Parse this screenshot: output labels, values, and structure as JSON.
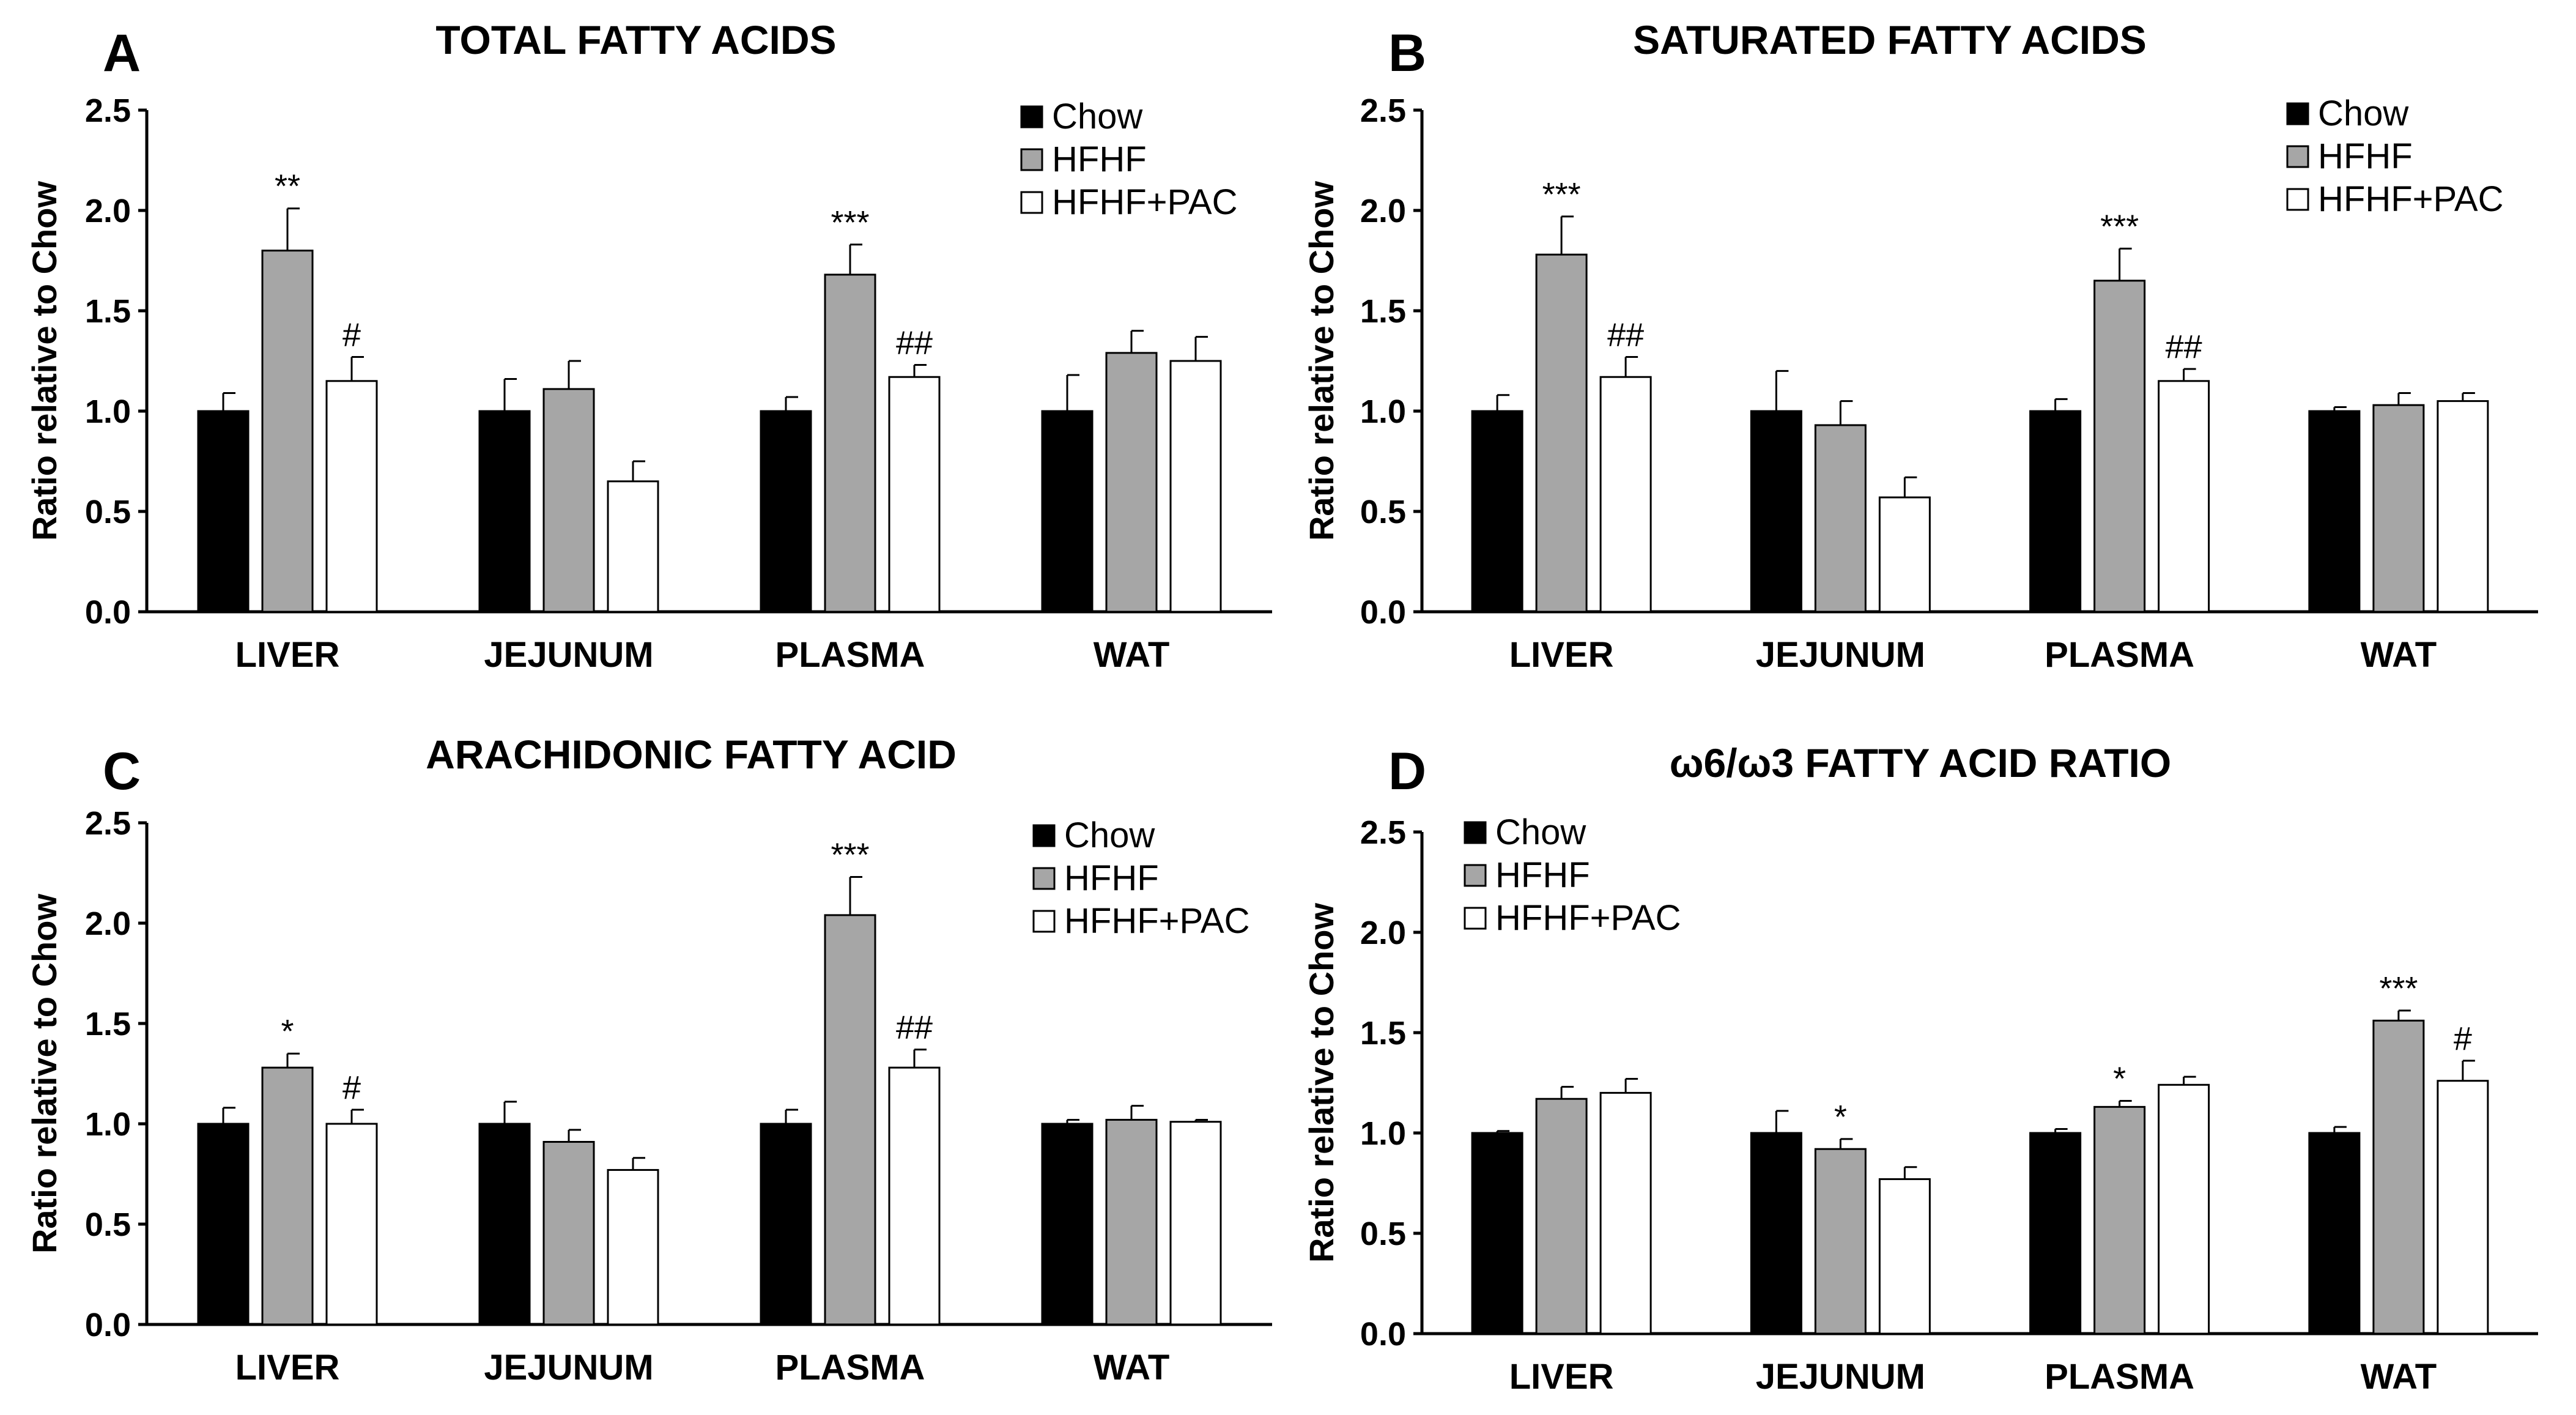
{
  "chart_data": [
    {
      "panel": "A",
      "type": "bar",
      "title": "TOTAL FATTY ACIDS",
      "xlabel": "",
      "ylabel": "Ratio relative to Chow",
      "ylim": [
        0,
        2.5
      ],
      "yticks": [
        "0.0",
        "0.5",
        "1.0",
        "1.5",
        "2.0",
        "2.5"
      ],
      "categories": [
        "LIVER",
        "JEJUNUM",
        "PLASMA",
        "WAT"
      ],
      "legend_position": "top-right",
      "series": [
        {
          "name": "Chow",
          "color": "#000000",
          "values": [
            1.0,
            1.0,
            1.0,
            1.0
          ],
          "errors": [
            0.09,
            0.16,
            0.07,
            0.18
          ]
        },
        {
          "name": "HFHF",
          "color": "#a6a6a6",
          "values": [
            1.8,
            1.11,
            1.68,
            1.29
          ],
          "errors": [
            0.21,
            0.14,
            0.15,
            0.11
          ]
        },
        {
          "name": "HFHF+PAC",
          "color": "#ffffff",
          "values": [
            1.15,
            0.65,
            1.17,
            1.25
          ],
          "errors": [
            0.12,
            0.1,
            0.06,
            0.12
          ]
        }
      ],
      "annotations": [
        {
          "category": 0,
          "series": 1,
          "text": "**"
        },
        {
          "category": 0,
          "series": 2,
          "text": "#"
        },
        {
          "category": 2,
          "series": 1,
          "text": "***"
        },
        {
          "category": 2,
          "series": 2,
          "text": "##"
        }
      ]
    },
    {
      "panel": "B",
      "type": "bar",
      "title": "SATURATED FATTY ACIDS",
      "xlabel": "",
      "ylabel": "Ratio relative to Chow",
      "ylim": [
        0,
        2.5
      ],
      "yticks": [
        "0.0",
        "0.5",
        "1.0",
        "1.5",
        "2.0",
        "2.5"
      ],
      "categories": [
        "LIVER",
        "JEJUNUM",
        "PLASMA",
        "WAT"
      ],
      "legend_position": "top-right",
      "series": [
        {
          "name": "Chow",
          "color": "#000000",
          "values": [
            1.0,
            1.0,
            1.0,
            1.0
          ],
          "errors": [
            0.08,
            0.2,
            0.06,
            0.02
          ]
        },
        {
          "name": "HFHF",
          "color": "#a6a6a6",
          "values": [
            1.78,
            0.93,
            1.65,
            1.03
          ],
          "errors": [
            0.19,
            0.12,
            0.16,
            0.06
          ]
        },
        {
          "name": "HFHF+PAC",
          "color": "#ffffff",
          "values": [
            1.17,
            0.57,
            1.15,
            1.05
          ],
          "errors": [
            0.1,
            0.1,
            0.06,
            0.04
          ]
        }
      ],
      "annotations": [
        {
          "category": 0,
          "series": 1,
          "text": "***"
        },
        {
          "category": 0,
          "series": 2,
          "text": "##"
        },
        {
          "category": 2,
          "series": 1,
          "text": "***"
        },
        {
          "category": 2,
          "series": 2,
          "text": "##"
        }
      ]
    },
    {
      "panel": "C",
      "type": "bar",
      "title": "ARACHIDONIC FATTY ACID",
      "xlabel": "",
      "ylabel": "Ratio relative to Chow",
      "ylim": [
        0,
        2.5
      ],
      "yticks": [
        "0.0",
        "0.5",
        "1.0",
        "1.5",
        "2.0",
        "2.5"
      ],
      "categories": [
        "LIVER",
        "JEJUNUM",
        "PLASMA",
        "WAT"
      ],
      "legend_position": "top-right",
      "series": [
        {
          "name": "Chow",
          "color": "#000000",
          "values": [
            1.0,
            1.0,
            1.0,
            1.0
          ],
          "errors": [
            0.08,
            0.11,
            0.07,
            0.02
          ]
        },
        {
          "name": "HFHF",
          "color": "#a6a6a6",
          "values": [
            1.28,
            0.91,
            2.04,
            1.02
          ],
          "errors": [
            0.07,
            0.06,
            0.19,
            0.07
          ]
        },
        {
          "name": "HFHF+PAC",
          "color": "#ffffff",
          "values": [
            1.0,
            0.77,
            1.28,
            1.01
          ],
          "errors": [
            0.07,
            0.06,
            0.09,
            0.01
          ]
        }
      ],
      "annotations": [
        {
          "category": 0,
          "series": 1,
          "text": "*"
        },
        {
          "category": 0,
          "series": 2,
          "text": "#"
        },
        {
          "category": 2,
          "series": 1,
          "text": "***"
        },
        {
          "category": 2,
          "series": 2,
          "text": "##"
        }
      ]
    },
    {
      "panel": "D",
      "type": "bar",
      "title": "ω6/ω3 FATTY ACID RATIO",
      "xlabel": "",
      "ylabel": "Ratio relative to Chow",
      "ylim": [
        0,
        2.5
      ],
      "yticks": [
        "0.0",
        "0.5",
        "1.0",
        "1.5",
        "2.0",
        "2.5"
      ],
      "categories": [
        "LIVER",
        "JEJUNUM",
        "PLASMA",
        "WAT"
      ],
      "legend_position": "top-left",
      "series": [
        {
          "name": "Chow",
          "color": "#000000",
          "values": [
            1.0,
            1.0,
            1.0,
            1.0
          ],
          "errors": [
            0.01,
            0.11,
            0.02,
            0.03
          ]
        },
        {
          "name": "HFHF",
          "color": "#a6a6a6",
          "values": [
            1.17,
            0.92,
            1.13,
            1.56
          ],
          "errors": [
            0.06,
            0.05,
            0.03,
            0.05
          ]
        },
        {
          "name": "HFHF+PAC",
          "color": "#ffffff",
          "values": [
            1.2,
            0.77,
            1.24,
            1.26
          ],
          "errors": [
            0.07,
            0.06,
            0.04,
            0.1
          ]
        }
      ],
      "annotations": [
        {
          "category": 1,
          "series": 1,
          "text": "*"
        },
        {
          "category": 2,
          "series": 1,
          "text": "*"
        },
        {
          "category": 3,
          "series": 1,
          "text": "***"
        },
        {
          "category": 3,
          "series": 2,
          "text": "#"
        }
      ]
    }
  ]
}
